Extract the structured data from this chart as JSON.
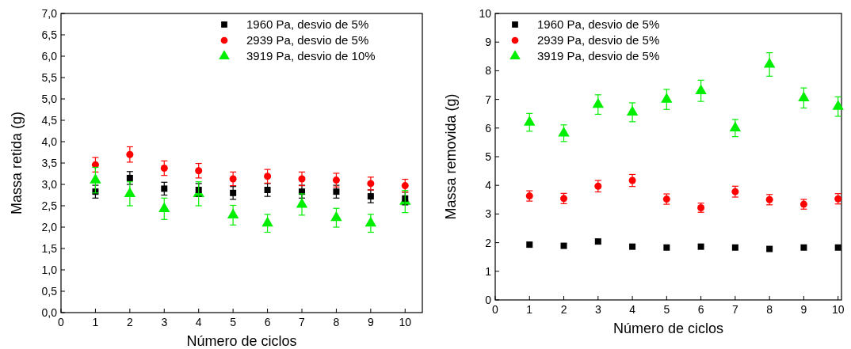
{
  "chart_data": [
    {
      "type": "scatter",
      "xlabel": "Número de ciclos",
      "ylabel": "Massa retida (g)",
      "x": [
        1,
        2,
        3,
        4,
        5,
        6,
        7,
        8,
        9,
        10
      ],
      "xlim": [
        0,
        10.5
      ],
      "xticks": [
        0,
        1,
        2,
        3,
        4,
        5,
        6,
        7,
        8,
        9,
        10
      ],
      "ylim": [
        0,
        7
      ],
      "yticks": [
        {
          "value": 0,
          "label": "0,0"
        },
        {
          "value": 0.5,
          "label": "0,5"
        },
        {
          "value": 1,
          "label": "1,0"
        },
        {
          "value": 1.5,
          "label": "1,5"
        },
        {
          "value": 2,
          "label": "2,0"
        },
        {
          "value": 2.5,
          "label": "2,5"
        },
        {
          "value": 3,
          "label": "3,0"
        },
        {
          "value": 3.5,
          "label": "3,5"
        },
        {
          "value": 4,
          "label": "4,0"
        },
        {
          "value": 4.5,
          "label": "4,5"
        },
        {
          "value": 5,
          "label": "5,0"
        },
        {
          "value": 5.5,
          "label": "5,5"
        },
        {
          "value": 6,
          "label": "6,0"
        },
        {
          "value": 6.5,
          "label": "6,5"
        },
        {
          "value": 7,
          "label": "7,0"
        }
      ],
      "legend": "top right",
      "grid": false,
      "series": [
        {
          "name": "1960 Pa, desvio de 5%",
          "color": "#000000",
          "marker": "square",
          "values": [
            2.83,
            3.15,
            2.9,
            2.87,
            2.8,
            2.87,
            2.83,
            2.83,
            2.72,
            2.67
          ],
          "errors": [
            0.15,
            0.15,
            0.15,
            0.15,
            0.15,
            0.15,
            0.15,
            0.15,
            0.15,
            0.15
          ]
        },
        {
          "name": "2939 Pa, desvio de 5%",
          "color": "#ff0000",
          "marker": "circle",
          "values": [
            3.46,
            3.7,
            3.38,
            3.32,
            3.13,
            3.19,
            3.13,
            3.1,
            3.02,
            2.97
          ],
          "errors": [
            0.17,
            0.18,
            0.17,
            0.17,
            0.16,
            0.16,
            0.16,
            0.16,
            0.15,
            0.15
          ]
        },
        {
          "name": "3919 Pa, desvio de 10%",
          "color": "#00ee00",
          "marker": "triangle",
          "values": [
            3.1,
            2.78,
            2.43,
            2.78,
            2.28,
            2.09,
            2.53,
            2.22,
            2.09,
            2.6
          ],
          "errors": [
            0.3,
            0.28,
            0.25,
            0.28,
            0.23,
            0.21,
            0.25,
            0.22,
            0.21,
            0.26
          ]
        }
      ]
    },
    {
      "type": "scatter",
      "xlabel": "Número de ciclos",
      "ylabel": "Massa removida (g)",
      "x": [
        1,
        2,
        3,
        4,
        5,
        6,
        7,
        8,
        9,
        10
      ],
      "xlim": [
        0,
        10.1
      ],
      "xticks": [
        0,
        1,
        2,
        3,
        4,
        5,
        6,
        7,
        8,
        9,
        10
      ],
      "ylim": [
        0,
        10
      ],
      "yticks": [
        0,
        1,
        2,
        3,
        4,
        5,
        6,
        7,
        8,
        9,
        10
      ],
      "legend": "top left",
      "grid": false,
      "series": [
        {
          "name": "1960 Pa, desvio de 5%",
          "color": "#000000",
          "marker": "square",
          "values": [
            1.93,
            1.89,
            2.04,
            1.86,
            1.83,
            1.86,
            1.83,
            1.78,
            1.83,
            1.83
          ]
        },
        {
          "name": "2939 Pa, desvio de 5%",
          "color": "#ff0000",
          "marker": "circle",
          "values": [
            3.63,
            3.54,
            3.97,
            4.17,
            3.52,
            3.22,
            3.78,
            3.5,
            3.34,
            3.53
          ],
          "errors": [
            0.18,
            0.18,
            0.2,
            0.21,
            0.18,
            0.16,
            0.19,
            0.18,
            0.17,
            0.18
          ]
        },
        {
          "name": "3919 Pa, desvio de 5%",
          "color": "#00ee00",
          "marker": "triangle",
          "values": [
            6.2,
            5.82,
            6.82,
            6.55,
            7.0,
            7.3,
            6.0,
            8.22,
            7.05,
            6.75
          ],
          "errors": [
            0.31,
            0.29,
            0.34,
            0.33,
            0.35,
            0.37,
            0.3,
            0.41,
            0.35,
            0.34
          ]
        }
      ]
    }
  ]
}
